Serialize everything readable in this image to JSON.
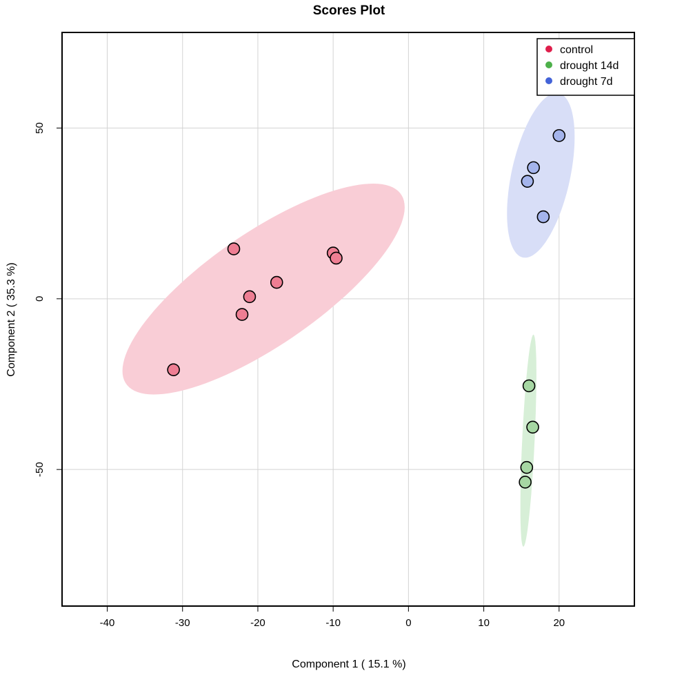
{
  "chart_data": {
    "type": "scatter",
    "title": "Scores Plot",
    "xlabel": "Component 1 ( 15.1 %)",
    "ylabel": "Component 2 ( 35.3 %)",
    "xlim": [
      -46,
      30
    ],
    "ylim": [
      -90,
      78
    ],
    "xticks": [
      -40,
      -30,
      -20,
      -10,
      0,
      10,
      20
    ],
    "yticks": [
      -50,
      0,
      50
    ],
    "grid": true,
    "legend_position": "top-right",
    "series": [
      {
        "name": "control",
        "color": "#DF1E4B",
        "point_fill": "#EE7E93",
        "ellipse_fill": "#F9CDD6",
        "points": [
          [
            -31.2,
            -20.8
          ],
          [
            -23.2,
            14.6
          ],
          [
            -22.1,
            -4.6
          ],
          [
            -21.1,
            0.6
          ],
          [
            -17.5,
            4.8
          ],
          [
            -10.0,
            13.4
          ],
          [
            -9.6,
            11.9
          ]
        ]
      },
      {
        "name": "drought 14d",
        "color": "#4DB04A",
        "point_fill": "#A6D7A3",
        "ellipse_fill": "#D7EFD7",
        "points": [
          [
            16.0,
            -25.5
          ],
          [
            16.5,
            -37.6
          ],
          [
            15.7,
            -49.4
          ],
          [
            15.5,
            -53.7
          ]
        ]
      },
      {
        "name": "drought 7d",
        "color": "#4363D8",
        "point_fill": "#A4B4EC",
        "ellipse_fill": "#D8DEF7",
        "points": [
          [
            20.0,
            47.8
          ],
          [
            16.6,
            38.4
          ],
          [
            15.8,
            34.4
          ],
          [
            17.9,
            24.0
          ]
        ]
      }
    ]
  }
}
